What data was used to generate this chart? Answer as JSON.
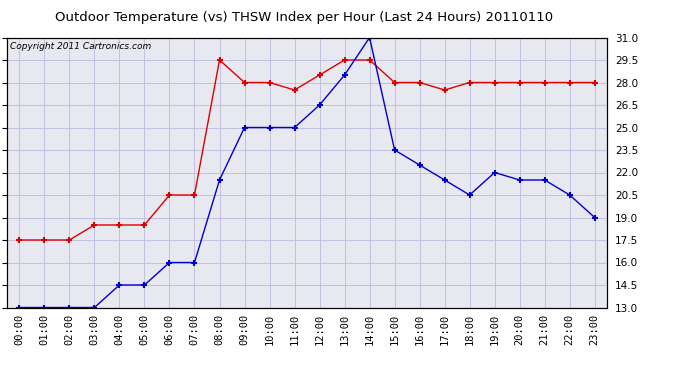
{
  "title": "Outdoor Temperature (vs) THSW Index per Hour (Last 24 Hours) 20110110",
  "copyright": "Copyright 2011 Cartronics.com",
  "hours": [
    "00:00",
    "01:00",
    "02:00",
    "03:00",
    "04:00",
    "05:00",
    "06:00",
    "07:00",
    "08:00",
    "09:00",
    "10:00",
    "11:00",
    "12:00",
    "13:00",
    "14:00",
    "15:00",
    "16:00",
    "17:00",
    "18:00",
    "19:00",
    "20:00",
    "21:00",
    "22:00",
    "23:00"
  ],
  "red_data": [
    17.5,
    17.5,
    17.5,
    18.5,
    18.5,
    18.5,
    20.5,
    20.5,
    29.5,
    28.0,
    28.0,
    27.5,
    28.5,
    29.5,
    29.5,
    28.0,
    28.0,
    27.5,
    28.0,
    28.0,
    28.0,
    28.0,
    28.0,
    28.0
  ],
  "blue_data": [
    13.0,
    13.0,
    13.0,
    13.0,
    14.5,
    14.5,
    16.0,
    16.0,
    21.5,
    25.0,
    25.0,
    25.0,
    26.5,
    28.5,
    31.0,
    23.5,
    22.5,
    21.5,
    20.5,
    22.0,
    21.5,
    21.5,
    20.5,
    19.0
  ],
  "ylim": [
    13.0,
    31.0
  ],
  "yticks": [
    13.0,
    14.5,
    16.0,
    17.5,
    19.0,
    20.5,
    22.0,
    23.5,
    25.0,
    26.5,
    28.0,
    29.5,
    31.0
  ],
  "bg_color": "#ffffff",
  "plot_bg": "#e8e8f0",
  "grid_color": "#bbbbdd",
  "red_color": "#dd0000",
  "blue_color": "#0000cc",
  "title_fontsize": 9.5,
  "copyright_fontsize": 6.5,
  "tick_fontsize": 7.5
}
